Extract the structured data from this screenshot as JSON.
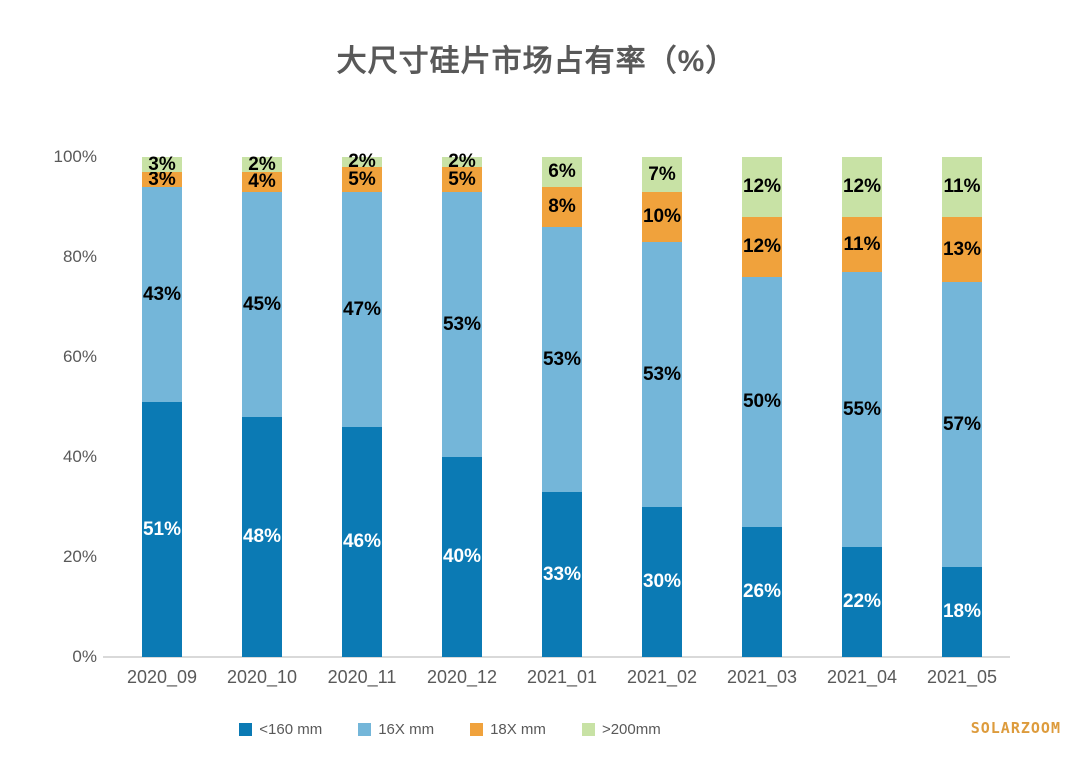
{
  "title": "大尺寸硅片市场占有率（%）",
  "watermark": "SOLARZOOM",
  "colors": {
    "title_text": "#595959",
    "axis_text": "#595959",
    "axis_line": "#d9d9d9",
    "watermark_text": "#dd9b3c"
  },
  "chart_data": {
    "type": "bar",
    "stacked": true,
    "percent_stacked": true,
    "title": "大尺寸硅片市场占有率（%）",
    "categories": [
      "2020_09",
      "2020_10",
      "2020_11",
      "2020_12",
      "2021_01",
      "2021_02",
      "2021_03",
      "2021_04",
      "2021_05"
    ],
    "series": [
      {
        "name": "<160 mm",
        "color": "#0b7ab4",
        "label_color": "#ffffff",
        "values": [
          51,
          48,
          46,
          40,
          33,
          30,
          26,
          22,
          18
        ]
      },
      {
        "name": "16X mm",
        "color": "#74b6d9",
        "label_color": "#000000",
        "values": [
          43,
          45,
          47,
          53,
          53,
          53,
          50,
          55,
          57
        ]
      },
      {
        "name": "18X mm",
        "color": "#f0a23c",
        "label_color": "#000000",
        "values": [
          3,
          4,
          5,
          5,
          8,
          10,
          12,
          11,
          13
        ]
      },
      {
        "name": ">200mm",
        "color": "#c8e2a5",
        "label_color": "#000000",
        "values": [
          3,
          2,
          2,
          2,
          6,
          7,
          12,
          12,
          11
        ]
      }
    ],
    "data_label_suffix": "%",
    "xlabel": "",
    "ylabel": "",
    "ylim": [
      0,
      100
    ],
    "y_ticks": [
      "0%",
      "20%",
      "40%",
      "60%",
      "80%",
      "100%"
    ],
    "grid": false,
    "legend_position": "bottom"
  }
}
